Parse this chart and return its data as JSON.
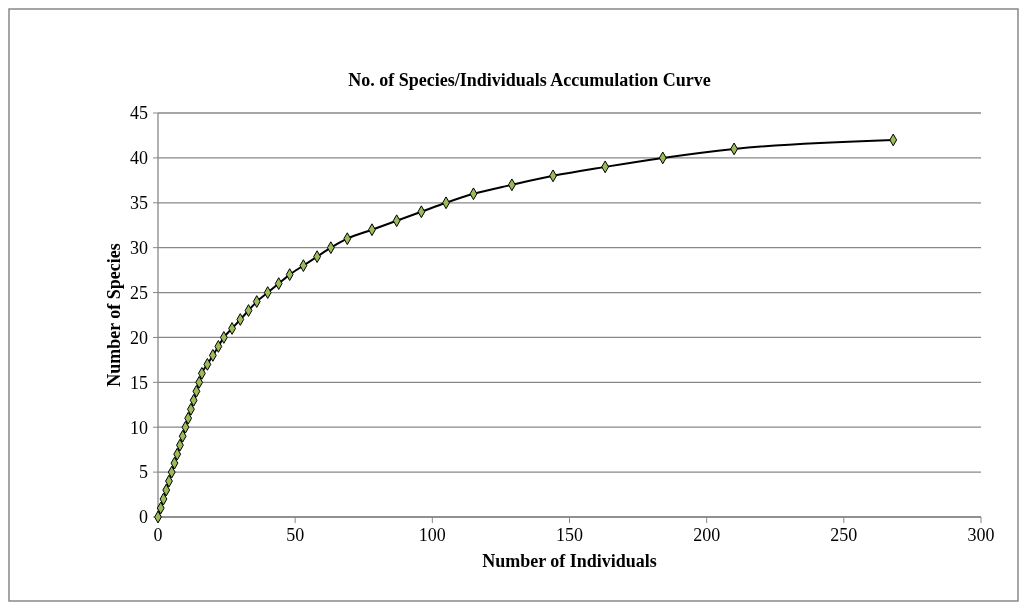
{
  "chart_data": {
    "type": "line",
    "title": "No. of Species/Individuals Accumulation Curve",
    "xlabel": "Number of Individuals",
    "ylabel": "Number of Species",
    "x": [
      0,
      1,
      2,
      3,
      4,
      5,
      6,
      7,
      8,
      9,
      10,
      11,
      12,
      13,
      14,
      15,
      16,
      18,
      20,
      22,
      24,
      27,
      30,
      33,
      36,
      40,
      44,
      48,
      53,
      58,
      63,
      69,
      78,
      87,
      96,
      105,
      115,
      129,
      144,
      163,
      184,
      210,
      268
    ],
    "series": [
      {
        "color": "#000000",
        "values": [
          0,
          1,
          2,
          3,
          4,
          5,
          6,
          7,
          8,
          9,
          10,
          11,
          12,
          13,
          14,
          15,
          16,
          17,
          18,
          19,
          20,
          21,
          22,
          23,
          24,
          25,
          26,
          27,
          28,
          29,
          30,
          31,
          32,
          33,
          34,
          35,
          36,
          37,
          38,
          39,
          40,
          41,
          42
        ]
      }
    ],
    "xlim": [
      0,
      300
    ],
    "xticks": [
      0,
      50,
      100,
      150,
      200,
      250,
      300
    ],
    "ylim": [
      0,
      45
    ],
    "yticks": [
      0,
      5,
      10,
      15,
      20,
      25,
      30,
      35,
      40,
      45
    ],
    "grid": "y",
    "marker": "diamond",
    "line_style": "solid"
  }
}
